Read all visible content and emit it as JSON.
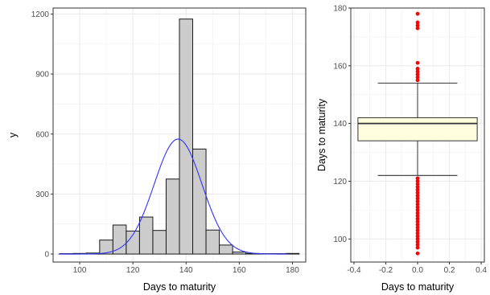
{
  "chart_data": [
    {
      "type": "bar",
      "subtype": "histogram-with-density-curve",
      "xlabel": "Days to maturity",
      "ylabel": "y",
      "xlim": [
        90,
        185
      ],
      "ylim": [
        -40,
        1230
      ],
      "xticks": [
        100,
        120,
        140,
        160,
        180
      ],
      "yticks": [
        0,
        300,
        600,
        900,
        1200
      ],
      "xtick_labels": [
        "100",
        "120",
        "140",
        "160",
        "180"
      ],
      "ytick_labels": [
        "0",
        "300",
        "600",
        "900",
        "1200"
      ],
      "grid": true,
      "bin_width": 5,
      "bins": [
        {
          "x0": 92.5,
          "x1": 97.5,
          "value": 2
        },
        {
          "x0": 97.5,
          "x1": 102.5,
          "value": 3
        },
        {
          "x0": 102.5,
          "x1": 107.5,
          "value": 5
        },
        {
          "x0": 107.5,
          "x1": 112.5,
          "value": 70
        },
        {
          "x0": 112.5,
          "x1": 117.5,
          "value": 145
        },
        {
          "x0": 117.5,
          "x1": 122.5,
          "value": 115
        },
        {
          "x0": 122.5,
          "x1": 127.5,
          "value": 185
        },
        {
          "x0": 127.5,
          "x1": 132.5,
          "value": 118
        },
        {
          "x0": 132.5,
          "x1": 137.5,
          "value": 375
        },
        {
          "x0": 137.5,
          "x1": 142.5,
          "value": 1175
        },
        {
          "x0": 142.5,
          "x1": 147.5,
          "value": 525
        },
        {
          "x0": 147.5,
          "x1": 152.5,
          "value": 120
        },
        {
          "x0": 152.5,
          "x1": 157.5,
          "value": 45
        },
        {
          "x0": 157.5,
          "x1": 162.5,
          "value": 10
        },
        {
          "x0": 162.5,
          "x1": 167.5,
          "value": 3
        },
        {
          "x0": 167.5,
          "x1": 172.5,
          "value": 2
        },
        {
          "x0": 172.5,
          "x1": 177.5,
          "value": 2
        },
        {
          "x0": 177.5,
          "x1": 182.5,
          "value": 3
        }
      ],
      "density_curve": {
        "mean": 137,
        "sd": 9,
        "peak": 575,
        "x_range": [
          92,
          178
        ]
      },
      "colors": {
        "bar_fill": "#cccccc",
        "bar_stroke": "#1a1a1a",
        "curve": "#3333ff"
      }
    },
    {
      "type": "boxplot",
      "xlabel": "Days to maturity",
      "ylabel": "Days to maturity",
      "xlim": [
        -0.42,
        0.42
      ],
      "ylim": [
        92,
        180
      ],
      "xticks": [
        -0.4,
        -0.2,
        0.0,
        0.2,
        0.4
      ],
      "yticks": [
        100,
        120,
        140,
        160,
        180
      ],
      "xtick_labels": [
        "-0.4",
        "-0.2",
        "0.0",
        "0.2",
        "0.4"
      ],
      "ytick_labels": [
        "100",
        "120",
        "140",
        "160",
        "180"
      ],
      "grid": true,
      "box": {
        "x_center": 0,
        "width": 0.75,
        "q1": 134,
        "median": 140,
        "q3": 142,
        "whisker_low": 122,
        "whisker_high": 154,
        "cap_width": 0.5
      },
      "outliers": [
        95,
        97,
        98,
        99,
        100,
        101,
        102,
        103,
        104,
        105,
        106,
        107,
        108,
        109,
        110,
        111,
        112,
        113,
        114,
        115,
        116,
        117,
        118,
        119,
        120,
        121,
        155,
        156,
        157,
        158,
        159,
        161,
        173,
        174,
        175,
        178
      ],
      "colors": {
        "box_fill": "#ffffe0",
        "box_stroke": "#333333",
        "outlier": "#ff0000"
      }
    }
  ]
}
